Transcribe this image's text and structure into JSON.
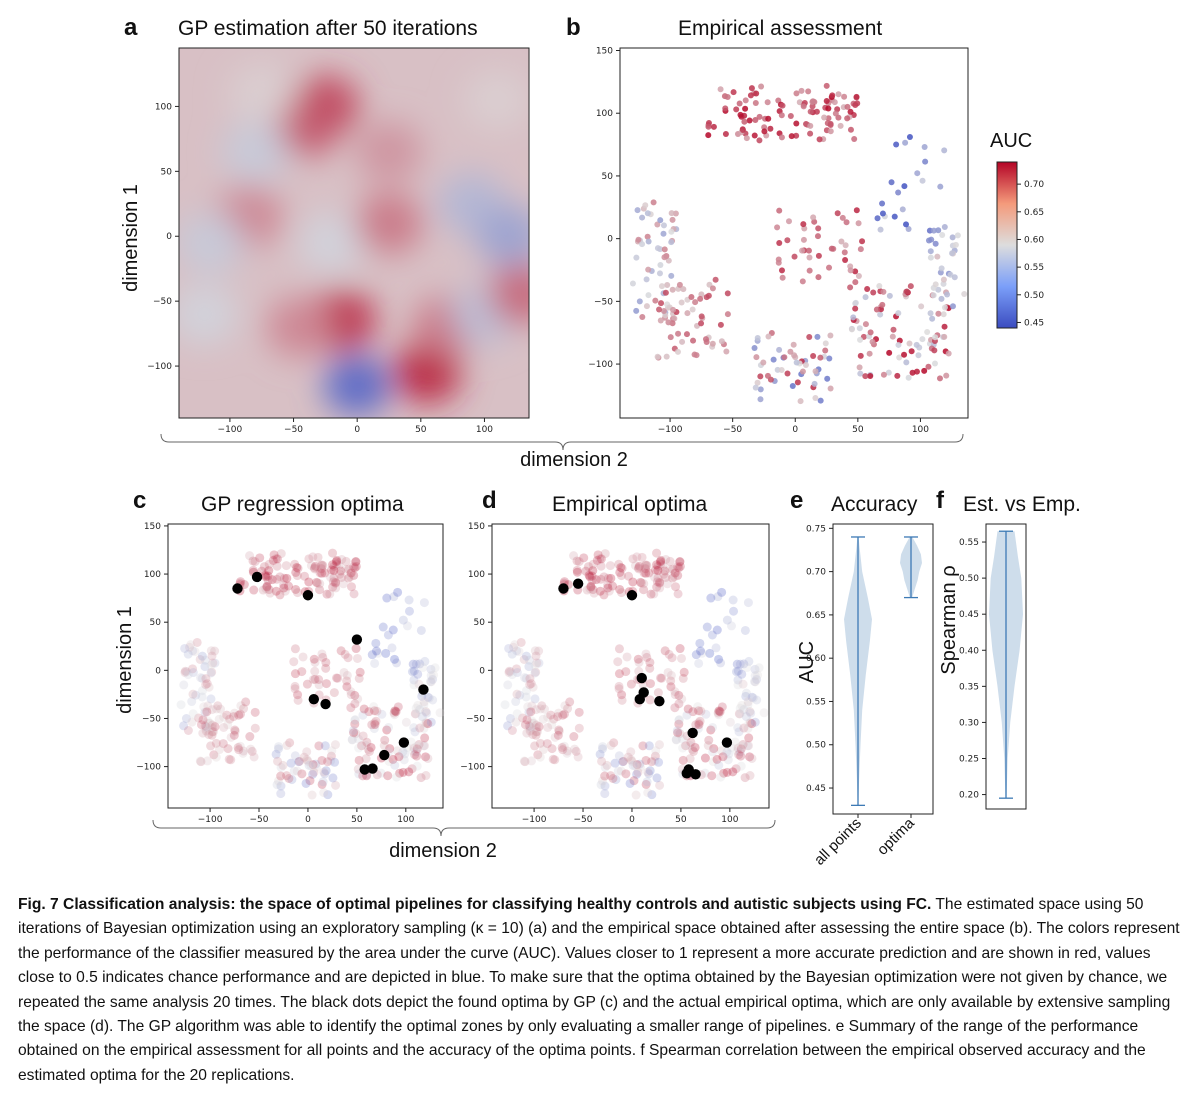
{
  "panels": {
    "a": {
      "letter": "a",
      "title": "GP estimation after 50 iterations"
    },
    "b": {
      "letter": "b",
      "title": "Empirical assessment"
    },
    "c": {
      "letter": "c",
      "title": "GP regression optima"
    },
    "d": {
      "letter": "d",
      "title": "Empirical optima"
    },
    "e": {
      "letter": "e",
      "title": "Accuracy"
    },
    "f": {
      "letter": "f",
      "title": "Est. vs Emp."
    }
  },
  "axis_labels": {
    "dim1": "dimension 1",
    "dim2": "dimension 2",
    "auc": "AUC",
    "spearman": "Spearman ρ"
  },
  "colorbar": {
    "title": "AUC",
    "ticks": [
      "0.70",
      "0.65",
      "0.60",
      "0.55",
      "0.50",
      "0.45"
    ],
    "range": [
      0.44,
      0.74
    ]
  },
  "colors": {
    "low": "#3b4cc0",
    "mid": "#dddddd",
    "high": "#b40426",
    "optima": "#000000",
    "violin_fill": "#c6d7e8",
    "violin_line": "#3d7ab5"
  },
  "chart_data": [
    {
      "type": "heatmap",
      "panel": "a",
      "title": "GP estimation after 50 iterations",
      "xlabel": "dimension 2",
      "ylabel": "dimension 1",
      "xlim": [
        -140,
        135
      ],
      "ylim": [
        -140,
        145
      ],
      "xticks": [
        -100,
        -50,
        0,
        50,
        100
      ],
      "yticks": [
        -100,
        -50,
        0,
        50,
        100
      ],
      "value_range": [
        0.44,
        0.74
      ],
      "base_value": 0.61,
      "blobs": [
        {
          "x": -25,
          "y": 100,
          "value": 0.7
        },
        {
          "x": -40,
          "y": 85,
          "value": 0.68
        },
        {
          "x": -80,
          "y": 65,
          "value": 0.57
        },
        {
          "x": -85,
          "y": 15,
          "value": 0.65
        },
        {
          "x": -115,
          "y": -5,
          "value": 0.57
        },
        {
          "x": -120,
          "y": -60,
          "value": 0.58
        },
        {
          "x": -20,
          "y": -5,
          "value": 0.58
        },
        {
          "x": -12,
          "y": -65,
          "value": 0.71
        },
        {
          "x": -45,
          "y": -70,
          "value": 0.65
        },
        {
          "x": 25,
          "y": 10,
          "value": 0.66
        },
        {
          "x": 55,
          "y": -105,
          "value": 0.72
        },
        {
          "x": 70,
          "y": -70,
          "value": 0.66
        },
        {
          "x": 0,
          "y": -115,
          "value": 0.47
        },
        {
          "x": 90,
          "y": 25,
          "value": 0.55
        },
        {
          "x": 120,
          "y": 0,
          "value": 0.53
        },
        {
          "x": 100,
          "y": -60,
          "value": 0.56
        },
        {
          "x": 130,
          "y": -45,
          "value": 0.67
        },
        {
          "x": -75,
          "y": 110,
          "value": 0.6
        },
        {
          "x": 110,
          "y": 105,
          "value": 0.6
        },
        {
          "x": 25,
          "y": 65,
          "value": 0.64
        }
      ]
    },
    {
      "type": "scatter",
      "panel": "b",
      "title": "Empirical assessment",
      "xlim": [
        -140,
        138
      ],
      "ylim": [
        -143,
        152
      ],
      "xticks": [
        -100,
        -50,
        0,
        50,
        100
      ],
      "yticks": [
        -100,
        -50,
        0,
        50,
        100,
        150
      ],
      "value_range": [
        0.44,
        0.74
      ],
      "clusters": [
        {
          "region": "top",
          "x": [
            -70,
            50
          ],
          "y": [
            78,
            122
          ],
          "values": [
            0.62,
            0.74
          ],
          "count": 110
        },
        {
          "region": "upper-right",
          "x": [
            65,
            120
          ],
          "y": [
            5,
            88
          ],
          "values": [
            0.44,
            0.58
          ],
          "count": 22
        },
        {
          "region": "center",
          "x": [
            -15,
            55
          ],
          "y": [
            -40,
            25
          ],
          "values": [
            0.62,
            0.72
          ],
          "count": 45
        },
        {
          "region": "left",
          "x": [
            -130,
            -95
          ],
          "y": [
            -65,
            30
          ],
          "values": [
            0.5,
            0.66
          ],
          "count": 55
        },
        {
          "region": "lower-left",
          "x": [
            -110,
            -50
          ],
          "y": [
            -95,
            -30
          ],
          "values": [
            0.6,
            0.7
          ],
          "count": 55
        },
        {
          "region": "lower-center",
          "x": [
            -35,
            30
          ],
          "y": [
            -130,
            -75
          ],
          "values": [
            0.48,
            0.72
          ],
          "count": 55
        },
        {
          "region": "lower-right",
          "x": [
            45,
            125
          ],
          "y": [
            -112,
            -35
          ],
          "values": [
            0.55,
            0.74
          ],
          "count": 95
        },
        {
          "region": "right-edge",
          "x": [
            105,
            135
          ],
          "y": [
            -55,
            10
          ],
          "values": [
            0.5,
            0.62
          ],
          "count": 30
        }
      ]
    },
    {
      "type": "scatter",
      "panel": "c",
      "title": "GP regression optima",
      "xlim": [
        -143,
        138
      ],
      "ylim": [
        -143,
        152
      ],
      "xticks": [
        -100,
        -50,
        0,
        50,
        100
      ],
      "yticks": [
        -100,
        -50,
        0,
        50,
        100,
        150
      ],
      "optima": [
        [
          -72,
          85
        ],
        [
          -52,
          97
        ],
        [
          0,
          78
        ],
        [
          50,
          32
        ],
        [
          6,
          -30
        ],
        [
          18,
          -35
        ],
        [
          58,
          -103
        ],
        [
          66,
          -102
        ],
        [
          78,
          -88
        ],
        [
          98,
          -75
        ],
        [
          118,
          -20
        ]
      ]
    },
    {
      "type": "scatter",
      "panel": "d",
      "title": "Empirical optima",
      "xlim": [
        -143,
        140
      ],
      "ylim": [
        -143,
        152
      ],
      "xticks": [
        -100,
        -50,
        0,
        50,
        100
      ],
      "yticks": [
        -100,
        -50,
        0,
        50,
        100,
        150
      ],
      "optima": [
        [
          -70,
          85
        ],
        [
          -55,
          90
        ],
        [
          0,
          78
        ],
        [
          10,
          -8
        ],
        [
          12,
          -23
        ],
        [
          8,
          -30
        ],
        [
          28,
          -32
        ],
        [
          62,
          -65
        ],
        [
          58,
          -103
        ],
        [
          65,
          -108
        ],
        [
          56,
          -107
        ],
        [
          97,
          -75
        ]
      ]
    },
    {
      "type": "violin",
      "panel": "e",
      "title": "Accuracy",
      "ylabel": "AUC",
      "categories": [
        "all points",
        "optima"
      ],
      "ylim": [
        0.42,
        0.755
      ],
      "yticks": [
        0.45,
        0.5,
        0.55,
        0.6,
        0.65,
        0.7,
        0.75
      ],
      "series": [
        {
          "name": "all points",
          "min": 0.43,
          "max": 0.74,
          "density": [
            [
              0.43,
              0.02
            ],
            [
              0.46,
              0.08
            ],
            [
              0.5,
              0.18
            ],
            [
              0.54,
              0.3
            ],
            [
              0.58,
              0.55
            ],
            [
              0.62,
              0.85
            ],
            [
              0.645,
              1.0
            ],
            [
              0.67,
              0.7
            ],
            [
              0.7,
              0.3
            ],
            [
              0.73,
              0.1
            ],
            [
              0.74,
              0.04
            ]
          ]
        },
        {
          "name": "optima",
          "min": 0.67,
          "max": 0.74,
          "density": [
            [
              0.67,
              0.1
            ],
            [
              0.68,
              0.35
            ],
            [
              0.69,
              0.6
            ],
            [
              0.7,
              0.75
            ],
            [
              0.71,
              1.0
            ],
            [
              0.72,
              0.9
            ],
            [
              0.73,
              0.55
            ],
            [
              0.74,
              0.12
            ]
          ]
        }
      ]
    },
    {
      "type": "violin",
      "panel": "f",
      "title": "Est. vs Emp.",
      "ylabel": "Spearman ρ",
      "ylim": [
        0.18,
        0.575
      ],
      "yticks": [
        0.2,
        0.25,
        0.3,
        0.35,
        0.4,
        0.45,
        0.5,
        0.55
      ],
      "series": [
        {
          "min": 0.195,
          "max": 0.565,
          "density": [
            [
              0.195,
              0.03
            ],
            [
              0.25,
              0.1
            ],
            [
              0.3,
              0.25
            ],
            [
              0.35,
              0.5
            ],
            [
              0.4,
              0.8
            ],
            [
              0.45,
              1.0
            ],
            [
              0.5,
              0.9
            ],
            [
              0.53,
              0.7
            ],
            [
              0.565,
              0.5
            ]
          ]
        }
      ]
    }
  ],
  "caption": {
    "bold": "Fig. 7 Classification analysis: the space of optimal pipelines for classifying healthy controls and autistic subjects using FC.",
    "text": "The estimated space using 50 iterations of Bayesian optimization using an exploratory sampling (κ = 10) (a) and the empirical space obtained after assessing the entire space (b). The colors represent the performance of the classifier measured by the area under the curve (AUC). Values closer to 1 represent a more accurate prediction and are shown in red, values close to 0.5 indicates chance performance and are depicted in blue. To make sure that the optima obtained by the Bayesian optimization were not given by chance, we repeated the same analysis 20 times. The black dots depict the found optima by GP (c) and the actual empirical optima, which are only available by extensive sampling the space (d). The GP algorithm was able to identify the optimal zones by only evaluating a smaller range of pipelines. e Summary of the range of the performance obtained on the empirical assessment for all points and the accuracy of the optima points. f Spearman correlation between the empirical observed accuracy and the estimated optima for the 20 replications."
  }
}
